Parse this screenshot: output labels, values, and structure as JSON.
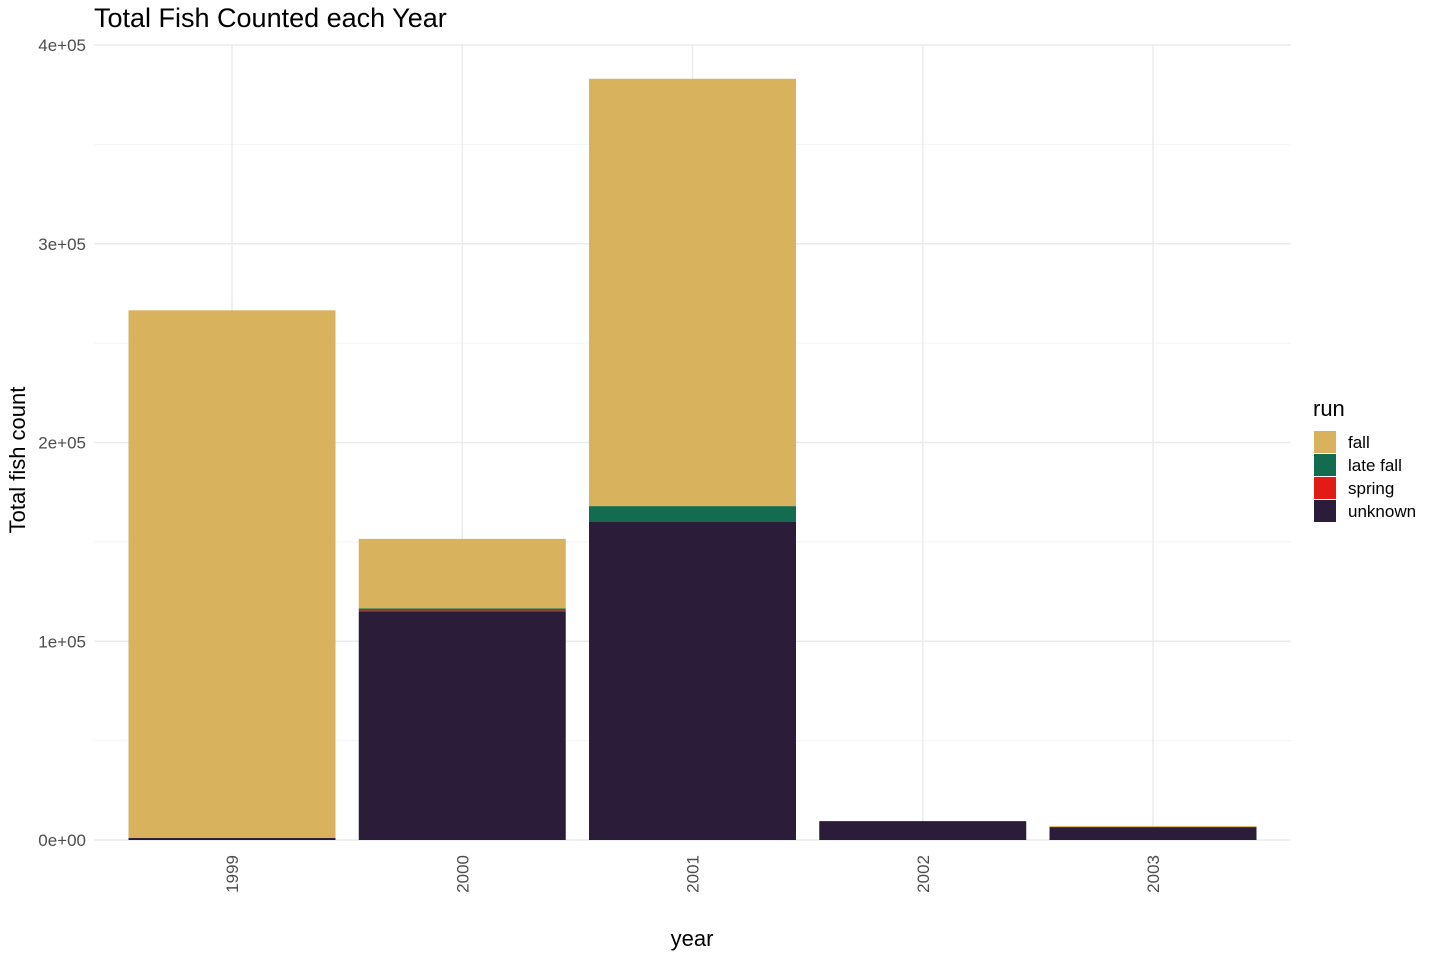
{
  "chart_data": {
    "type": "bar",
    "stacked": true,
    "title": "Total Fish Counted each Year",
    "xlabel": "year",
    "ylabel": "Total fish count",
    "categories": [
      "1999",
      "2000",
      "2001",
      "2002",
      "2003"
    ],
    "ylim": [
      0,
      400000
    ],
    "y_ticks": [
      0,
      100000,
      200000,
      300000,
      400000
    ],
    "y_tick_labels": [
      "0e+00",
      "1e+05",
      "2e+05",
      "3e+05",
      "4e+05"
    ],
    "grid": true,
    "legend_title": "run",
    "legend_position": "right",
    "series": [
      {
        "name": "unknown",
        "color": "#2b1d39",
        "values": [
          1000,
          115000,
          160000,
          9500,
          6500
        ]
      },
      {
        "name": "spring",
        "color": "#e21b14",
        "values": [
          0,
          500,
          0,
          0,
          0
        ]
      },
      {
        "name": "late fall",
        "color": "#136c4f",
        "values": [
          0,
          1000,
          8000,
          0,
          0
        ]
      },
      {
        "name": "fall",
        "color": "#d9b25e",
        "values": [
          265500,
          35000,
          215000,
          0,
          500
        ]
      }
    ],
    "legend_order": [
      "fall",
      "late fall",
      "spring",
      "unknown"
    ]
  }
}
